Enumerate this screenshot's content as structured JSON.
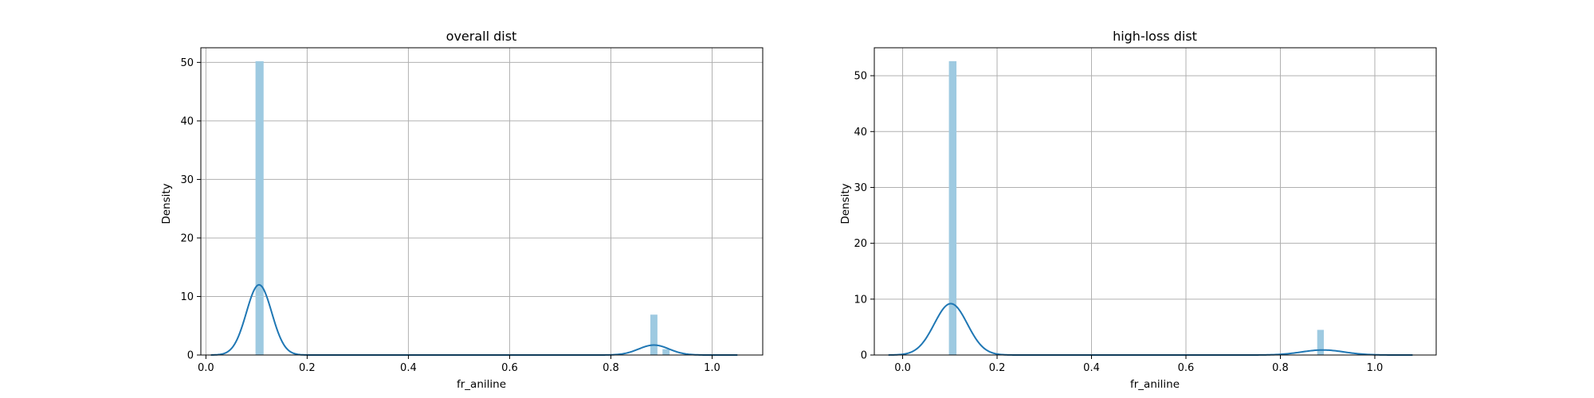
{
  "chart_data": [
    {
      "type": "histogram",
      "title": "overall dist",
      "xlabel": "fr_aniline",
      "ylabel": "Density",
      "xlim": [
        -0.01,
        1.1
      ],
      "ylim": [
        0,
        52.5
      ],
      "xticks": [
        0.0,
        0.2,
        0.4,
        0.6,
        0.8,
        1.0
      ],
      "xtick_labels": [
        "0.0",
        "0.2",
        "0.4",
        "0.6",
        "0.8",
        "1.0"
      ],
      "yticks": [
        0,
        10,
        20,
        30,
        40,
        50
      ],
      "ytick_labels": [
        "0",
        "10",
        "20",
        "30",
        "40",
        "50"
      ],
      "grid": true,
      "bar_color": "#9ecae1",
      "kde_color": "#1f77b4",
      "bars": [
        {
          "x0": 0.098,
          "x1": 0.114,
          "height": 50.2
        },
        {
          "x0": 0.878,
          "x1": 0.892,
          "height": 6.9
        },
        {
          "x0": 0.902,
          "x1": 0.916,
          "height": 1.0
        }
      ],
      "kde": [
        {
          "peak_x": 0.105,
          "peak_y": 12.0,
          "sigma": 0.025
        },
        {
          "peak_x": 0.885,
          "peak_y": 1.7,
          "sigma": 0.03
        }
      ],
      "kde_range": [
        0.01,
        1.05
      ]
    },
    {
      "type": "histogram",
      "title": "high-loss dist",
      "xlabel": "fr_aniline",
      "ylabel": "Density",
      "xlim": [
        -0.06,
        1.13
      ],
      "ylim": [
        0,
        55.0
      ],
      "xticks": [
        0.0,
        0.2,
        0.4,
        0.6,
        0.8,
        1.0
      ],
      "xtick_labels": [
        "0.0",
        "0.2",
        "0.4",
        "0.6",
        "0.8",
        "1.0"
      ],
      "yticks": [
        0,
        10,
        20,
        30,
        40,
        50
      ],
      "ytick_labels": [
        "0",
        "10",
        "20",
        "30",
        "40",
        "50"
      ],
      "grid": true,
      "bar_color": "#9ecae1",
      "kde_color": "#1f77b4",
      "bars": [
        {
          "x0": 0.098,
          "x1": 0.114,
          "height": 52.6
        },
        {
          "x0": 0.878,
          "x1": 0.892,
          "height": 4.5
        }
      ],
      "kde": [
        {
          "peak_x": 0.102,
          "peak_y": 9.2,
          "sigma": 0.035
        },
        {
          "peak_x": 0.89,
          "peak_y": 0.9,
          "sigma": 0.045
        }
      ],
      "kde_range": [
        -0.03,
        1.08
      ]
    }
  ]
}
